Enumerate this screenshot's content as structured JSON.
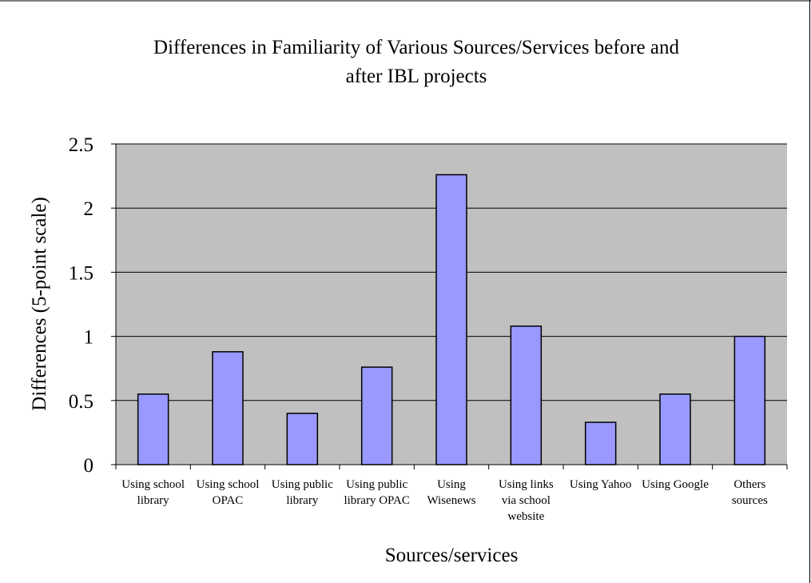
{
  "chart_data": {
    "type": "bar",
    "title_lines": [
      "Differences in Familiarity of Various Sources/Services before and",
      "after IBL projects"
    ],
    "xlabel": "Sources/services",
    "ylabel": "Differences (5-point scale)",
    "ylim": [
      0,
      2.5
    ],
    "yticks": [
      "0",
      "0.5",
      "1",
      "1.5",
      "2",
      "2.5"
    ],
    "categories": [
      [
        "Using school",
        "library"
      ],
      [
        "Using school",
        "OPAC"
      ],
      [
        "Using public",
        "library"
      ],
      [
        "Using public",
        "library OPAC"
      ],
      [
        "Using",
        "Wisenews"
      ],
      [
        "Using links",
        "via school",
        "website"
      ],
      [
        "Using Yahoo"
      ],
      [
        "Using Google"
      ],
      [
        "Others",
        "sources"
      ]
    ],
    "values": [
      0.55,
      0.88,
      0.4,
      0.76,
      2.26,
      1.08,
      0.33,
      0.55,
      1.0
    ],
    "grid": true,
    "legend": "none",
    "colors": {
      "bar": "#9999ff",
      "plot_bg": "#c0c0c0",
      "border": "#000000"
    }
  }
}
